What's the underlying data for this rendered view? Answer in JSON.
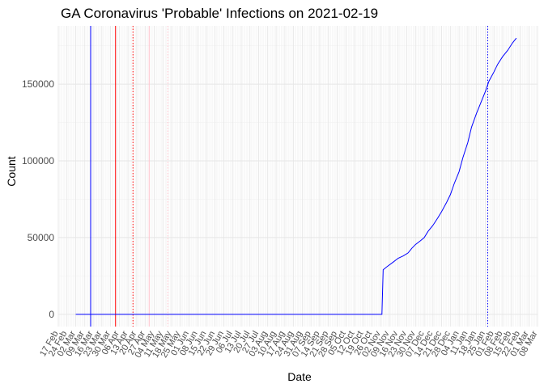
{
  "chart_data": {
    "type": "line",
    "title": "GA Coronavirus 'Probable' Infections on 2021-02-19",
    "xlabel": "Date",
    "ylabel": "Count",
    "xlim": [
      "2020-02-17",
      "2021-03-08"
    ],
    "ylim": [
      -8000,
      188000
    ],
    "grid": true,
    "legend": "none",
    "line_color": "#0000ff",
    "y_ticks": [
      0,
      50000,
      100000,
      150000
    ],
    "x_ticks": [
      {
        "date": "2020-02-17",
        "label": "17 Feb"
      },
      {
        "date": "2020-02-24",
        "label": "24 Feb"
      },
      {
        "date": "2020-03-02",
        "label": "02 Mar"
      },
      {
        "date": "2020-03-09",
        "label": "09 Mar"
      },
      {
        "date": "2020-03-16",
        "label": "16 Mar"
      },
      {
        "date": "2020-03-23",
        "label": "23 Mar"
      },
      {
        "date": "2020-03-30",
        "label": "30 Mar"
      },
      {
        "date": "2020-04-06",
        "label": "06 Apr"
      },
      {
        "date": "2020-04-13",
        "label": "13 Apr"
      },
      {
        "date": "2020-04-20",
        "label": "20 Apr"
      },
      {
        "date": "2020-04-27",
        "label": "27 Apr"
      },
      {
        "date": "2020-05-04",
        "label": "04 May"
      },
      {
        "date": "2020-05-11",
        "label": "11 May"
      },
      {
        "date": "2020-05-18",
        "label": "18 May"
      },
      {
        "date": "2020-05-25",
        "label": "25 May"
      },
      {
        "date": "2020-06-01",
        "label": "01 Jun"
      },
      {
        "date": "2020-06-08",
        "label": "08 Jun"
      },
      {
        "date": "2020-06-15",
        "label": "15 Jun"
      },
      {
        "date": "2020-06-22",
        "label": "22 Jun"
      },
      {
        "date": "2020-06-29",
        "label": "29 Jun"
      },
      {
        "date": "2020-07-06",
        "label": "06 Jul"
      },
      {
        "date": "2020-07-13",
        "label": "13 Jul"
      },
      {
        "date": "2020-07-20",
        "label": "20 Jul"
      },
      {
        "date": "2020-07-27",
        "label": "27 Jul"
      },
      {
        "date": "2020-08-03",
        "label": "03 Aug"
      },
      {
        "date": "2020-08-10",
        "label": "10 Aug"
      },
      {
        "date": "2020-08-17",
        "label": "17 Aug"
      },
      {
        "date": "2020-08-24",
        "label": "24 Aug"
      },
      {
        "date": "2020-08-31",
        "label": "31 Aug"
      },
      {
        "date": "2020-09-07",
        "label": "07 Sep"
      },
      {
        "date": "2020-09-14",
        "label": "14 Sep"
      },
      {
        "date": "2020-09-21",
        "label": "21 Sep"
      },
      {
        "date": "2020-09-28",
        "label": "28 Sep"
      },
      {
        "date": "2020-10-05",
        "label": "05 Oct"
      },
      {
        "date": "2020-10-12",
        "label": "12 Oct"
      },
      {
        "date": "2020-10-19",
        "label": "19 Oct"
      },
      {
        "date": "2020-10-26",
        "label": "26 Oct"
      },
      {
        "date": "2020-11-02",
        "label": "02 Nov"
      },
      {
        "date": "2020-11-09",
        "label": "09 Nov"
      },
      {
        "date": "2020-11-16",
        "label": "16 Nov"
      },
      {
        "date": "2020-11-23",
        "label": "23 Nov"
      },
      {
        "date": "2020-11-30",
        "label": "30 Nov"
      },
      {
        "date": "2020-12-07",
        "label": "07 Dec"
      },
      {
        "date": "2020-12-14",
        "label": "14 Dec"
      },
      {
        "date": "2020-12-21",
        "label": "21 Dec"
      },
      {
        "date": "2020-12-28",
        "label": "28 Dec"
      },
      {
        "date": "2021-01-04",
        "label": "04 Jan"
      },
      {
        "date": "2021-01-11",
        "label": "11 Jan"
      },
      {
        "date": "2021-01-18",
        "label": "18 Jan"
      },
      {
        "date": "2021-01-25",
        "label": "25 Jan"
      },
      {
        "date": "2021-02-01",
        "label": "01 Feb"
      },
      {
        "date": "2021-02-08",
        "label": "08 Feb"
      },
      {
        "date": "2021-02-15",
        "label": "15 Feb"
      },
      {
        "date": "2021-02-22",
        "label": "22 Feb"
      },
      {
        "date": "2021-03-01",
        "label": "01 Mar"
      },
      {
        "date": "2021-03-08",
        "label": "08 Mar"
      }
    ],
    "series": [
      {
        "color": "#0000ff",
        "points": [
          {
            "x": "2020-03-02",
            "y": 0
          },
          {
            "x": "2020-11-03",
            "y": 0
          },
          {
            "x": "2020-11-04",
            "y": 29000
          },
          {
            "x": "2020-11-07",
            "y": 31000
          },
          {
            "x": "2020-11-12",
            "y": 34000
          },
          {
            "x": "2020-11-16",
            "y": 36500
          },
          {
            "x": "2020-11-20",
            "y": 38000
          },
          {
            "x": "2020-11-24",
            "y": 40000
          },
          {
            "x": "2020-11-27",
            "y": 43000
          },
          {
            "x": "2020-11-30",
            "y": 45500
          },
          {
            "x": "2020-12-04",
            "y": 48000
          },
          {
            "x": "2020-12-07",
            "y": 50000
          },
          {
            "x": "2020-12-10",
            "y": 54000
          },
          {
            "x": "2020-12-14",
            "y": 58000
          },
          {
            "x": "2020-12-18",
            "y": 63000
          },
          {
            "x": "2020-12-21",
            "y": 67000
          },
          {
            "x": "2020-12-25",
            "y": 73000
          },
          {
            "x": "2020-12-28",
            "y": 78000
          },
          {
            "x": "2020-12-31",
            "y": 85000
          },
          {
            "x": "2021-01-04",
            "y": 93000
          },
          {
            "x": "2021-01-07",
            "y": 102000
          },
          {
            "x": "2021-01-11",
            "y": 112000
          },
          {
            "x": "2021-01-14",
            "y": 122000
          },
          {
            "x": "2021-01-18",
            "y": 131000
          },
          {
            "x": "2021-01-21",
            "y": 137000
          },
          {
            "x": "2021-01-25",
            "y": 145000
          },
          {
            "x": "2021-01-28",
            "y": 152000
          },
          {
            "x": "2021-02-01",
            "y": 158000
          },
          {
            "x": "2021-02-04",
            "y": 163000
          },
          {
            "x": "2021-02-08",
            "y": 168000
          },
          {
            "x": "2021-02-12",
            "y": 172000
          },
          {
            "x": "2021-02-16",
            "y": 177000
          },
          {
            "x": "2021-02-19",
            "y": 180000
          }
        ]
      }
    ],
    "reference_lines": [
      {
        "x": "2020-03-14",
        "color": "#0000ff",
        "style": "solid"
      },
      {
        "x": "2020-04-03",
        "color": "#ff0000",
        "style": "solid"
      },
      {
        "x": "2020-04-17",
        "color": "#ff0000",
        "style": "dotted"
      },
      {
        "x": "2020-04-30",
        "color": "#ffc0cb",
        "style": "solid"
      },
      {
        "x": "2020-05-15",
        "color": "#ffc0cb",
        "style": "dotted"
      },
      {
        "x": "2021-01-27",
        "color": "#0000ff",
        "style": "dotted"
      }
    ]
  }
}
